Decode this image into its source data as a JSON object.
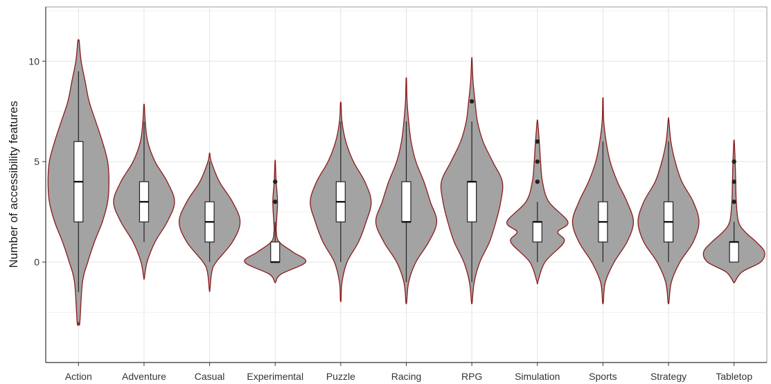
{
  "chart_data": {
    "type": "violin",
    "title": "",
    "xlabel": "",
    "ylabel": "Number of accessibility features",
    "categories": [
      "Action",
      "Adventure",
      "Casual",
      "Experimental",
      "Puzzle",
      "Racing",
      "RPG",
      "Simulation",
      "Sports",
      "Strategy",
      "Tabletop"
    ],
    "y_ticks": [
      0,
      5,
      10
    ],
    "y_tick_labels": [
      "0",
      "5",
      "10"
    ],
    "ylim": [
      -5,
      12.7
    ],
    "grid": true,
    "series": [
      {
        "category": "Action",
        "min_extent": -3,
        "max_extent": 11,
        "q1": 2,
        "median": 4,
        "q3": 6,
        "whisker_low": -1.5,
        "whisker_high": 9.5,
        "outliers": [],
        "density": [
          [
            -3,
            0.01
          ],
          [
            -1,
            0.03
          ],
          [
            0,
            0.07
          ],
          [
            1,
            0.12
          ],
          [
            2,
            0.18
          ],
          [
            3,
            0.22
          ],
          [
            4,
            0.23
          ],
          [
            5,
            0.22
          ],
          [
            6,
            0.18
          ],
          [
            7,
            0.13
          ],
          [
            8,
            0.08
          ],
          [
            9,
            0.05
          ],
          [
            10,
            0.02
          ],
          [
            11,
            0.005
          ]
        ]
      },
      {
        "category": "Adventure",
        "min_extent": -0.8,
        "max_extent": 7.8,
        "q1": 2,
        "median": 3,
        "q3": 4,
        "whisker_low": 1,
        "whisker_high": 7,
        "outliers": [],
        "density": [
          [
            -0.8,
            0.005
          ],
          [
            0,
            0.05
          ],
          [
            1,
            0.18
          ],
          [
            2,
            0.38
          ],
          [
            3,
            0.5
          ],
          [
            4,
            0.38
          ],
          [
            5,
            0.18
          ],
          [
            6,
            0.06
          ],
          [
            7,
            0.02
          ],
          [
            7.8,
            0.005
          ]
        ]
      },
      {
        "category": "Casual",
        "min_extent": -1.4,
        "max_extent": 5.4,
        "q1": 1,
        "median": 2,
        "q3": 3,
        "whisker_low": 0,
        "whisker_high": 5,
        "outliers": [],
        "density": [
          [
            -1.4,
            0.005
          ],
          [
            -0.5,
            0.04
          ],
          [
            0,
            0.12
          ],
          [
            1,
            0.42
          ],
          [
            2,
            0.56
          ],
          [
            3,
            0.42
          ],
          [
            4,
            0.18
          ],
          [
            5,
            0.03
          ],
          [
            5.4,
            0.005
          ]
        ]
      },
      {
        "category": "Experimental",
        "min_extent": -1,
        "max_extent": 5,
        "q1": 0,
        "median": 0,
        "q3": 1,
        "whisker_low": 0,
        "whisker_high": 2,
        "outliers": [
          3,
          4
        ],
        "density": [
          [
            -1,
            0.01
          ],
          [
            -0.6,
            0.15
          ],
          [
            0,
            0.77
          ],
          [
            0.5,
            0.45
          ],
          [
            1,
            0.1
          ],
          [
            1.5,
            0.03
          ],
          [
            2,
            0.035
          ],
          [
            3,
            0.06
          ],
          [
            4,
            0.025
          ],
          [
            5,
            0.005
          ]
        ]
      },
      {
        "category": "Puzzle",
        "min_extent": -1.9,
        "max_extent": 7.9,
        "q1": 2,
        "median": 3,
        "q3": 4,
        "whisker_low": 0,
        "whisker_high": 7,
        "outliers": [],
        "density": [
          [
            -1.9,
            0.005
          ],
          [
            -1,
            0.02
          ],
          [
            0,
            0.1
          ],
          [
            1,
            0.28
          ],
          [
            2,
            0.4
          ],
          [
            3,
            0.48
          ],
          [
            4,
            0.38
          ],
          [
            5,
            0.2
          ],
          [
            6,
            0.08
          ],
          [
            7,
            0.02
          ],
          [
            7.9,
            0.005
          ]
        ]
      },
      {
        "category": "Racing",
        "min_extent": -2,
        "max_extent": 9.1,
        "q1": 2,
        "median": 2,
        "q3": 4,
        "whisker_low": -1,
        "whisker_high": 7,
        "outliers": [],
        "density": [
          [
            -2,
            0.005
          ],
          [
            -1,
            0.03
          ],
          [
            0,
            0.12
          ],
          [
            1,
            0.28
          ],
          [
            2,
            0.38
          ],
          [
            3,
            0.3
          ],
          [
            4,
            0.22
          ],
          [
            5,
            0.12
          ],
          [
            6,
            0.06
          ],
          [
            7,
            0.03
          ],
          [
            8,
            0.01
          ],
          [
            9.1,
            0.003
          ]
        ]
      },
      {
        "category": "RPG",
        "min_extent": -2,
        "max_extent": 10.1,
        "q1": 2,
        "median": 4,
        "q3": 4,
        "whisker_low": -1,
        "whisker_high": 7,
        "outliers": [
          8
        ],
        "density": [
          [
            -2,
            0.005
          ],
          [
            -1,
            0.03
          ],
          [
            0,
            0.1
          ],
          [
            1,
            0.22
          ],
          [
            2,
            0.3
          ],
          [
            3,
            0.36
          ],
          [
            4,
            0.38
          ],
          [
            5,
            0.26
          ],
          [
            6,
            0.14
          ],
          [
            7,
            0.07
          ],
          [
            8,
            0.04
          ],
          [
            9,
            0.015
          ],
          [
            10.1,
            0.003
          ]
        ]
      },
      {
        "category": "Simulation",
        "min_extent": -1,
        "max_extent": 7,
        "q1": 1,
        "median": 2,
        "q3": 2,
        "whisker_low": 0,
        "whisker_high": 3,
        "outliers": [
          4,
          5,
          6
        ],
        "density": [
          [
            -1,
            0.005
          ],
          [
            0,
            0.12
          ],
          [
            1,
            0.42
          ],
          [
            1.5,
            0.32
          ],
          [
            2,
            0.48
          ],
          [
            3,
            0.18
          ],
          [
            4,
            0.08
          ],
          [
            5,
            0.05
          ],
          [
            6,
            0.03
          ],
          [
            7,
            0.005
          ]
        ]
      },
      {
        "category": "Sports",
        "min_extent": -2,
        "max_extent": 8.1,
        "q1": 1,
        "median": 2,
        "q3": 3,
        "whisker_low": 0,
        "whisker_high": 6,
        "outliers": [],
        "density": [
          [
            -2,
            0.005
          ],
          [
            -1,
            0.03
          ],
          [
            0,
            0.14
          ],
          [
            1,
            0.3
          ],
          [
            2,
            0.38
          ],
          [
            3,
            0.3
          ],
          [
            4,
            0.18
          ],
          [
            5,
            0.09
          ],
          [
            6,
            0.04
          ],
          [
            7,
            0.01
          ],
          [
            8.1,
            0.003
          ]
        ]
      },
      {
        "category": "Strategy",
        "min_extent": -2,
        "max_extent": 7.1,
        "q1": 1,
        "median": 2,
        "q3": 3,
        "whisker_low": 0,
        "whisker_high": 6,
        "outliers": [],
        "density": [
          [
            -2,
            0.005
          ],
          [
            -1,
            0.03
          ],
          [
            0,
            0.12
          ],
          [
            1,
            0.26
          ],
          [
            2,
            0.32
          ],
          [
            3,
            0.26
          ],
          [
            4,
            0.14
          ],
          [
            5,
            0.07
          ],
          [
            6,
            0.025
          ],
          [
            7.1,
            0.003
          ]
        ]
      },
      {
        "category": "Tabletop",
        "min_extent": -1,
        "max_extent": 6,
        "q1": 0,
        "median": 1,
        "q3": 1,
        "whisker_low": 0,
        "whisker_high": 2,
        "outliers": [
          3,
          4,
          5
        ],
        "density": [
          [
            -1,
            0.01
          ],
          [
            -0.5,
            0.14
          ],
          [
            0,
            0.48
          ],
          [
            0.5,
            0.55
          ],
          [
            1,
            0.4
          ],
          [
            1.5,
            0.2
          ],
          [
            2,
            0.08
          ],
          [
            3,
            0.04
          ],
          [
            4,
            0.03
          ],
          [
            5,
            0.02
          ],
          [
            6,
            0.005
          ]
        ]
      }
    ],
    "colors": {
      "violin_fill": "#a3a3a3",
      "violin_stroke": "#8b1a1a",
      "box_fill": "#ffffff",
      "box_stroke": "#222222",
      "median": "#111111",
      "outlier": "#222222",
      "grid_major": "#e3e3e3",
      "grid_minor": "#f0f0f0",
      "axis": "#333333",
      "panel_border": "#9a9a9a"
    }
  }
}
